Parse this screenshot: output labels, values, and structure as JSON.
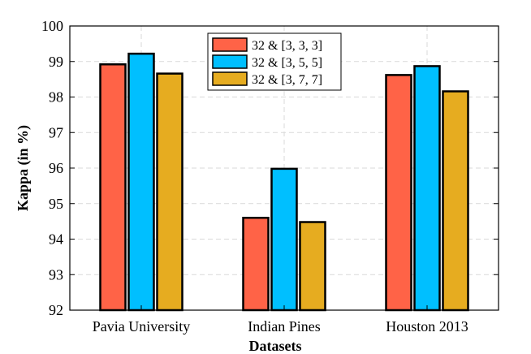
{
  "chart_data": {
    "type": "bar",
    "xlabel": "Datasets",
    "ylabel": "Kappa (in %)",
    "ylim": [
      92,
      100
    ],
    "yticks": [
      "92",
      "93",
      "94",
      "95",
      "96",
      "97",
      "98",
      "99",
      "100"
    ],
    "grid": true,
    "legend_position": "top-center",
    "categories": [
      "Pavia University",
      "Indian Pines",
      "Houston 2013"
    ],
    "series": [
      {
        "name": "32 & [3, 3, 3]",
        "color": "#ff6347",
        "values": [
          98.92,
          94.6,
          98.62
        ]
      },
      {
        "name": "32 & [3, 5, 5]",
        "color": "#00bfff",
        "values": [
          99.22,
          95.98,
          98.87
        ]
      },
      {
        "name": "32 & [3, 7, 7]",
        "color": "#e6ac20",
        "values": [
          98.66,
          94.48,
          98.16
        ]
      }
    ]
  }
}
